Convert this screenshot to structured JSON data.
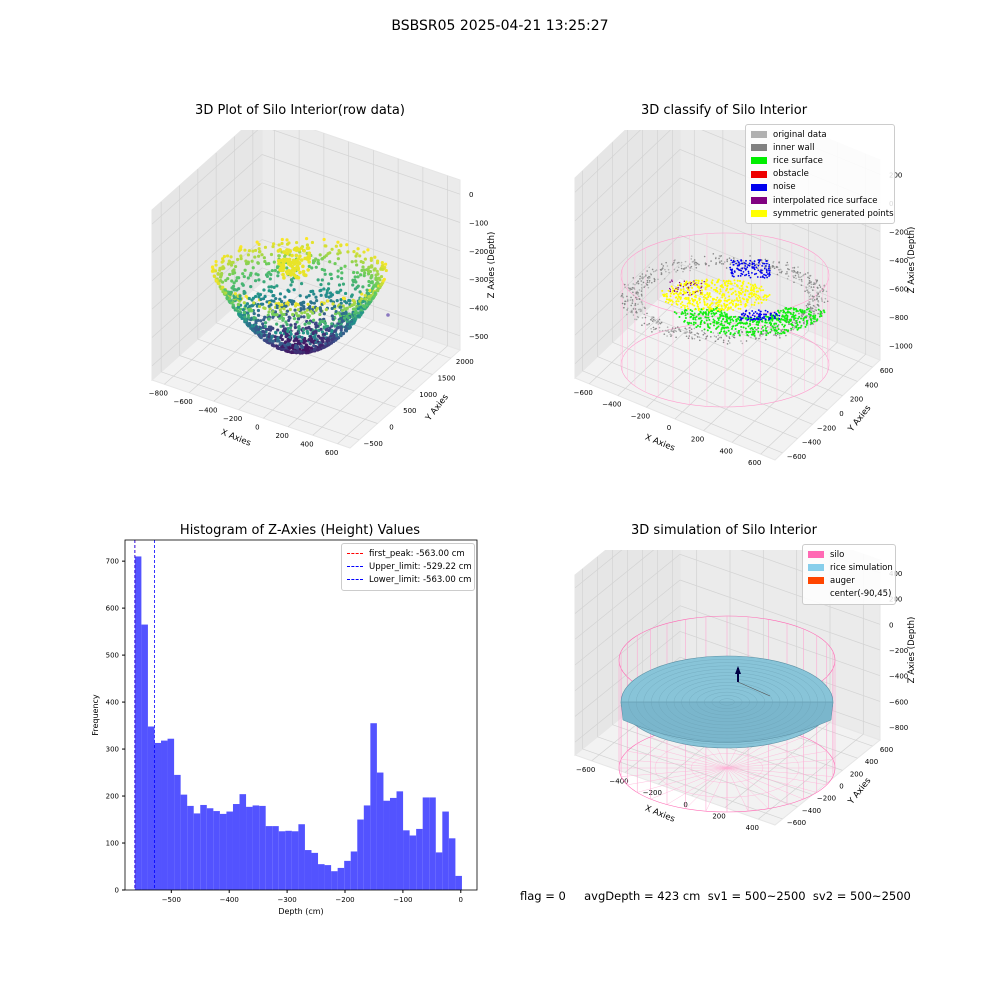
{
  "figure": {
    "suptitle": "BSBSR05 2025-04-21 13:25:27",
    "footer": "flag = 0     avgDepth = 423 cm  sv1 = 500~2500  sv2 = 500~2500"
  },
  "panels": {
    "raw": {
      "title": "3D Plot of Silo Interior(row data)",
      "xlabel": "X Axies",
      "ylabel": "Y Axies",
      "zlabel": "Z Axies (Depth)",
      "xticks": [
        "−800",
        "−600",
        "−400",
        "−200",
        "0",
        "200",
        "400",
        "600"
      ],
      "yticks": [
        "−500",
        "0",
        "500",
        "1000",
        "1500",
        "2000"
      ],
      "zticks": [
        "0",
        "−100",
        "−200",
        "−300",
        "−400",
        "−500"
      ]
    },
    "classify": {
      "title": "3D classify of Silo Interior",
      "xlabel": "X Axies",
      "ylabel": "Y Axies",
      "zlabel": "Z Axies (Depth)",
      "xticks": [
        "−600",
        "−400",
        "−200",
        "0",
        "200",
        "400",
        "600"
      ],
      "yticks": [
        "−600",
        "−400",
        "−200",
        "0",
        "200",
        "400",
        "600"
      ],
      "zticks": [
        "200",
        "0",
        "−200",
        "−400",
        "−600",
        "−800",
        "−1000"
      ],
      "legend": [
        {
          "label": "original data",
          "color": "#b0b0b0"
        },
        {
          "label": "inner wall",
          "color": "#808080"
        },
        {
          "label": "rice surface",
          "color": "#00ee00"
        },
        {
          "label": "obstacle",
          "color": "#ee0000"
        },
        {
          "label": "noise",
          "color": "#0000ee"
        },
        {
          "label": "interpolated rice surface",
          "color": "#800080"
        },
        {
          "label": "symmetric generated points",
          "color": "#ffff00"
        }
      ]
    },
    "simulation": {
      "title": "3D simulation of Silo Interior",
      "xlabel": "X Axies",
      "ylabel": "Y Axies",
      "zlabel": "Z Axies (Depth)",
      "xticks": [
        "−600",
        "−400",
        "−200",
        "0",
        "200",
        "400"
      ],
      "yticks": [
        "−600",
        "−400",
        "−200",
        "0",
        "200",
        "400",
        "600"
      ],
      "zticks": [
        "400",
        "200",
        "0",
        "−200",
        "−400",
        "−600",
        "−800"
      ],
      "legend": [
        {
          "label": "silo",
          "color": "#ff69b4"
        },
        {
          "label": "rice simulation",
          "color": "#87ceeb"
        },
        {
          "label": "auger",
          "color": "#ff4500"
        },
        {
          "label": "center(-90,45)",
          "color": ""
        }
      ]
    }
  },
  "chart_data": [
    {
      "type": "bar",
      "title": "Histogram of Z-Axies (Height) Values",
      "xlabel": "Depth (cm)",
      "ylabel": "Frequency",
      "xlim": [
        -580,
        28
      ],
      "ylim": [
        0,
        745
      ],
      "xticks": [
        "−500",
        "−400",
        "−300",
        "−200",
        "−100",
        "0"
      ],
      "yticks": [
        "0",
        "100",
        "200",
        "300",
        "400",
        "500",
        "600",
        "700"
      ],
      "bin_start": -563,
      "bin_width": 11.3,
      "values": [
        710,
        565,
        348,
        313,
        318,
        322,
        245,
        203,
        179,
        163,
        181,
        174,
        168,
        162,
        167,
        183,
        204,
        177,
        180,
        179,
        136,
        136,
        125,
        126,
        125,
        140,
        85,
        79,
        55,
        53,
        40,
        47,
        62,
        82,
        150,
        180,
        355,
        250,
        190,
        196,
        210,
        127,
        116,
        130,
        197,
        197,
        80,
        167,
        110,
        30
      ],
      "color": "#4444ff",
      "lines": [
        {
          "label": "first_peak: -563.00 cm",
          "value": -563.0,
          "color": "#ff0000"
        },
        {
          "label": "Upper_limit: -529.22 cm",
          "value": -529.22,
          "color": "#0000ff"
        },
        {
          "label": "Lower_limit: -563.00 cm",
          "value": -563.0,
          "color": "#0000ff"
        }
      ]
    }
  ]
}
